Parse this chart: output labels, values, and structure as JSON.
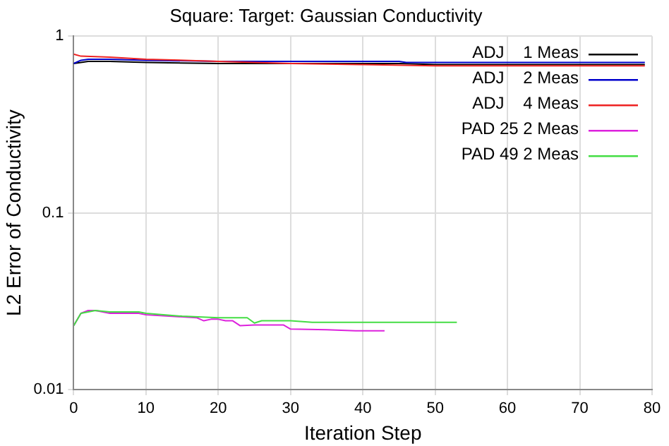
{
  "chart_data": {
    "type": "line",
    "title": "Square: Target: Gaussian Conductivity",
    "xlabel": "Iteration Step",
    "ylabel": "L2 Error of Conductivity",
    "log": "y",
    "grid": true,
    "legend": "top right",
    "marker": "none",
    "line_style": "solid",
    "xlim": [
      0,
      80
    ],
    "xticks": [
      0,
      10,
      20,
      30,
      40,
      50,
      60,
      70,
      80
    ],
    "ylim": [
      0.01,
      1
    ],
    "yticks": [
      0.01,
      0.1,
      1
    ],
    "series": [
      {
        "name": "ADJ    1 Meas",
        "color": "#000000",
        "x": [
          0,
          1,
          2,
          5,
          10,
          20,
          30,
          40,
          45,
          50,
          60,
          70,
          79
        ],
        "values": [
          0.7,
          0.71,
          0.72,
          0.72,
          0.71,
          0.7,
          0.7,
          0.7,
          0.7,
          0.69,
          0.69,
          0.69,
          0.69
        ]
      },
      {
        "name": "ADJ    2 Meas",
        "color": "#0000cc",
        "x": [
          0,
          1,
          2,
          5,
          10,
          20,
          30,
          40,
          45,
          46,
          50,
          60,
          70,
          79
        ],
        "values": [
          0.7,
          0.73,
          0.74,
          0.74,
          0.73,
          0.72,
          0.72,
          0.72,
          0.72,
          0.71,
          0.71,
          0.71,
          0.71,
          0.71
        ]
      },
      {
        "name": "ADJ    4 Meas",
        "color": "#ee2222",
        "x": [
          0,
          1,
          5,
          10,
          20,
          30,
          40,
          50,
          60,
          70,
          79
        ],
        "values": [
          0.79,
          0.77,
          0.76,
          0.74,
          0.72,
          0.7,
          0.69,
          0.68,
          0.68,
          0.68,
          0.68
        ]
      },
      {
        "name": "PAD 25 2 Meas",
        "color": "#dd22dd",
        "x": [
          0,
          1,
          2,
          3,
          5,
          9,
          10,
          17,
          18,
          19,
          20,
          21,
          22,
          23,
          25,
          29,
          30,
          35,
          39,
          40,
          43
        ],
        "values": [
          0.023,
          0.027,
          0.028,
          0.028,
          0.027,
          0.027,
          0.0265,
          0.0255,
          0.0245,
          0.025,
          0.025,
          0.0245,
          0.0245,
          0.023,
          0.0232,
          0.0232,
          0.022,
          0.0218,
          0.0215,
          0.0215,
          0.0215
        ]
      },
      {
        "name": "PAD 49 2 Meas",
        "color": "#44dd44",
        "x": [
          0,
          1,
          2,
          3,
          5,
          9,
          10,
          15,
          20,
          24,
          25,
          26,
          30,
          33,
          40,
          53
        ],
        "values": [
          0.023,
          0.027,
          0.0275,
          0.028,
          0.0275,
          0.0275,
          0.027,
          0.026,
          0.0255,
          0.0255,
          0.0238,
          0.0245,
          0.0245,
          0.024,
          0.024,
          0.024
        ]
      }
    ]
  }
}
